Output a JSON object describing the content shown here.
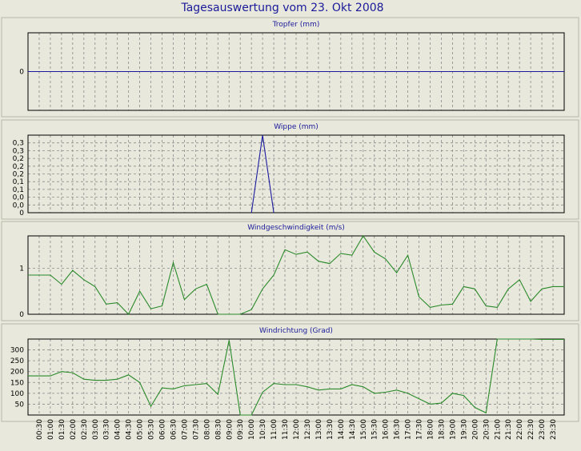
{
  "title": "Tagesauswertung vom 23. Okt 2008",
  "x_ticks": [
    "00:30",
    "01:00",
    "01:30",
    "02:00",
    "02:30",
    "03:00",
    "03:30",
    "04:00",
    "04:30",
    "05:00",
    "05:30",
    "06:00",
    "06:30",
    "07:00",
    "07:30",
    "08:00",
    "08:30",
    "09:00",
    "09:30",
    "10:00",
    "10:30",
    "11:00",
    "11:30",
    "12:00",
    "12:30",
    "13:00",
    "13:30",
    "14:00",
    "14:30",
    "15:00",
    "15:30",
    "16:00",
    "16:30",
    "17:00",
    "17:30",
    "18:00",
    "18:30",
    "19:00",
    "19:30",
    "20:00",
    "20:30",
    "21:00",
    "21:30",
    "22:00",
    "22:30",
    "23:00",
    "23:30"
  ],
  "colors": {
    "background": "#e8e8dc",
    "title": "#1a1a9a",
    "grid": "#8a8a8a",
    "tropfer": "#1a1aa0",
    "wippe": "#1a1aa0",
    "wind": "#2a8a2a",
    "richtung": "#2a8a2a"
  },
  "chart_data": [
    {
      "type": "line",
      "title": "Tropfer (mm)",
      "color": "#1a1aa0",
      "ylim": [
        -1,
        1
      ],
      "y_ticks": [
        0
      ],
      "y_tick_labels": [
        "0"
      ],
      "x_start": 0,
      "x_end": 48,
      "series": [
        {
          "x": [
            0,
            48
          ],
          "values": [
            0,
            0
          ]
        }
      ]
    },
    {
      "type": "line",
      "title": "Wippe (mm)",
      "color": "#1a1aa0",
      "ylim": [
        0,
        0.35
      ],
      "y_ticks": [
        0,
        0.035,
        0.07,
        0.105,
        0.14,
        0.175,
        0.21,
        0.245,
        0.28,
        0.315
      ],
      "y_tick_labels": [
        "0",
        "0,0",
        "0,0",
        "0,1",
        "0,1",
        "0,2",
        "0,2",
        "0,2",
        "0,3",
        "0,3"
      ],
      "x_start": 0,
      "x_end": 48,
      "series": [
        {
          "x": [
            20,
            21,
            22
          ],
          "values": [
            0,
            0.35,
            0
          ]
        }
      ]
    },
    {
      "type": "line",
      "title": "Windgeschwindigkeit (m/s)",
      "color": "#2a8a2a",
      "ylim": [
        0,
        1.7
      ],
      "y_ticks": [
        0,
        1
      ],
      "y_tick_labels": [
        "0",
        "1"
      ],
      "x_start": 0,
      "x_end": 48,
      "series": [
        {
          "x": [
            0,
            1,
            2,
            3,
            4,
            5,
            6,
            7,
            8,
            9,
            10,
            11,
            12,
            13,
            14,
            15,
            16,
            17,
            18,
            19,
            20,
            21,
            22,
            23,
            24,
            25,
            26,
            27,
            28,
            29,
            30,
            31,
            32,
            33,
            34,
            35,
            36,
            37,
            38,
            39,
            40,
            41,
            42,
            43,
            44,
            45,
            46,
            47,
            48
          ],
          "values": [
            0.85,
            0.85,
            0.85,
            0.65,
            0.95,
            0.75,
            0.6,
            0.22,
            0.25,
            0.0,
            0.5,
            0.12,
            0.18,
            1.12,
            0.32,
            0.55,
            0.65,
            0.0,
            0.0,
            0.0,
            0.1,
            0.55,
            0.85,
            1.4,
            1.3,
            1.35,
            1.15,
            1.1,
            1.32,
            1.28,
            1.7,
            1.35,
            1.2,
            0.9,
            1.28,
            0.38,
            0.15,
            0.2,
            0.22,
            0.6,
            0.55,
            0.18,
            0.15,
            0.55,
            0.75,
            0.28,
            0.55,
            0.6,
            0.6
          ]
        }
      ]
    },
    {
      "type": "line",
      "title": "Windrichtung (Grad)",
      "color": "#2a8a2a",
      "ylim": [
        0,
        350
      ],
      "y_ticks": [
        50,
        100,
        150,
        200,
        250,
        300
      ],
      "y_tick_labels": [
        "50",
        "100",
        "150",
        "200",
        "250",
        "300"
      ],
      "x_start": 0,
      "x_end": 48,
      "series": [
        {
          "x": [
            0,
            1,
            2,
            3,
            4,
            5,
            6,
            7,
            8,
            9,
            10,
            11,
            12,
            13,
            14,
            15,
            16,
            17,
            18,
            19,
            20,
            21,
            22,
            23,
            24,
            25,
            26,
            27,
            28,
            29,
            30,
            31,
            32,
            33,
            34,
            35,
            36,
            37,
            38,
            39,
            40,
            41,
            42,
            43,
            44,
            45,
            46,
            47,
            48
          ],
          "values": [
            180,
            180,
            180,
            200,
            195,
            165,
            160,
            160,
            165,
            185,
            150,
            40,
            125,
            120,
            135,
            140,
            145,
            95,
            345,
            0,
            0,
            105,
            145,
            140,
            140,
            130,
            115,
            120,
            120,
            140,
            130,
            100,
            105,
            115,
            100,
            75,
            50,
            55,
            100,
            90,
            35,
            10,
            350,
            350,
            350,
            350,
            348,
            348,
            348
          ]
        }
      ]
    }
  ]
}
